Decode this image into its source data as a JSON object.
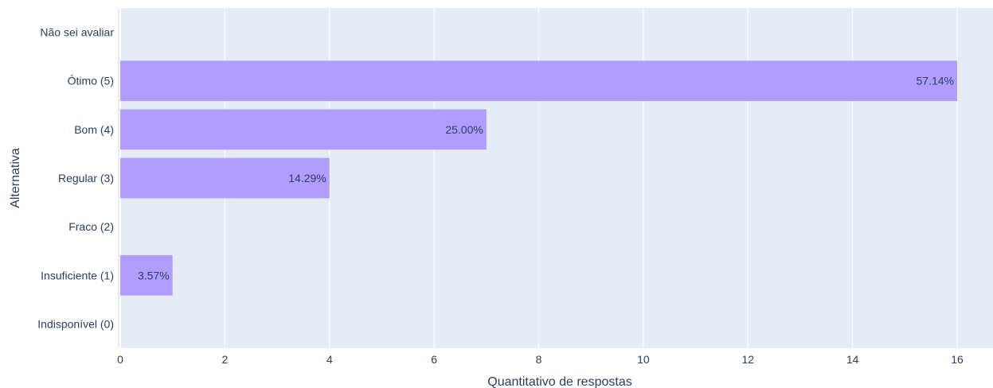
{
  "chart_data": {
    "type": "bar",
    "orientation": "horizontal",
    "categories": [
      "Não sei avaliar",
      "Ótimo (5)",
      "Bom (4)",
      "Regular (3)",
      "Fraco (2)",
      "Insuficiente (1)",
      "Indisponível (0)"
    ],
    "values": [
      0,
      16,
      7,
      4,
      0,
      1,
      0
    ],
    "data_labels": [
      "",
      "57.14%",
      "25.00%",
      "14.29%",
      "",
      "3.57%",
      ""
    ],
    "xlabel": "Quantitativo de respostas",
    "ylabel": "Alternativa",
    "xlim": [
      0,
      16.8
    ],
    "xticks": [
      0,
      2,
      4,
      6,
      8,
      10,
      12,
      14,
      16
    ],
    "grid": true,
    "bar_color": "#b19cff",
    "plot_background": "#e5ecf6",
    "gridline_color": "#ffffff",
    "text_color": "#2a3f5f"
  }
}
